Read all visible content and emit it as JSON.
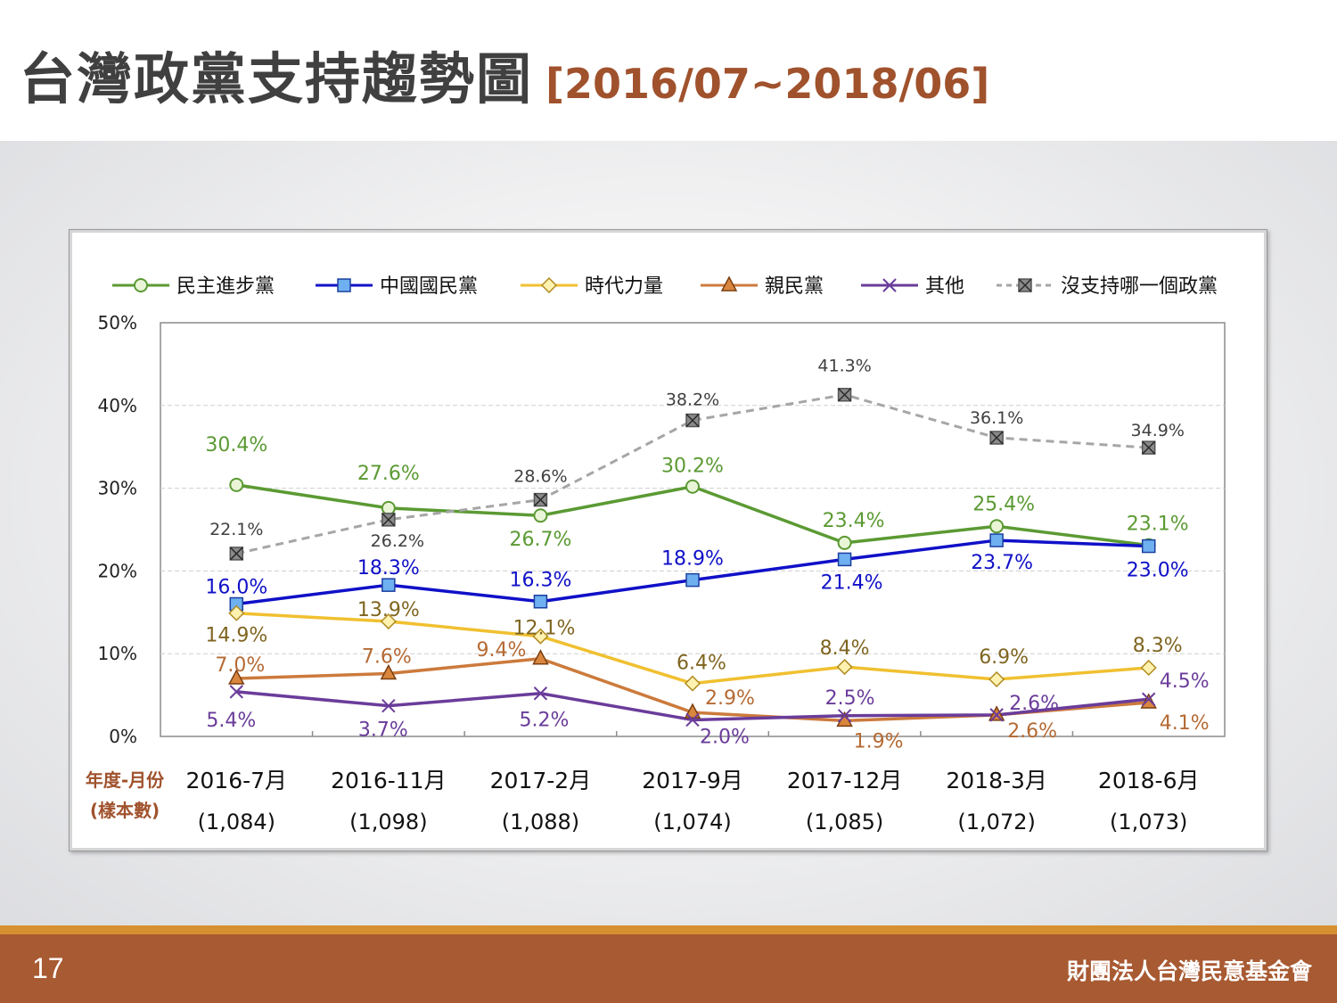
{
  "slide": {
    "title": "台灣政黨支持趨勢圖",
    "title_range": "[2016/07~2018/06]",
    "page_number": "17",
    "organization": "財團法人台灣民意基金會"
  },
  "colors": {
    "dpp": "#5b9a33",
    "kmt": "#1010c8",
    "npp": "#f0c030",
    "pfp": "#cc7a3c",
    "other": "#6a3c9a",
    "none": "#a6a6a6",
    "accent": "#a0522d"
  },
  "chart_data": {
    "type": "line",
    "title": "",
    "xlabel": "年度-月份\n(樣本數)",
    "xlabel_lines": [
      "年度-月份",
      "(樣本數)"
    ],
    "ylabel": "",
    "ylim": [
      0,
      50
    ],
    "yticks": [
      "0%",
      "10%",
      "20%",
      "30%",
      "40%",
      "50%"
    ],
    "grid": true,
    "legend_position": "top",
    "categories": [
      "2016-7月",
      "2016-11月",
      "2017-2月",
      "2017-9月",
      "2017-12月",
      "2018-3月",
      "2018-6月"
    ],
    "sample_sizes": [
      "(1,084)",
      "(1,098)",
      "(1,088)",
      "(1,074)",
      "(1,085)",
      "(1,072)",
      "(1,073)"
    ],
    "series": [
      {
        "name": "民主進步黨",
        "key": "dpp",
        "marker": "circle",
        "dashed": false,
        "values": [
          30.4,
          27.6,
          26.7,
          30.2,
          23.4,
          25.4,
          23.1
        ],
        "labels": [
          "30.4%",
          "27.6%",
          "26.7%",
          "30.2%",
          "23.4%",
          "25.4%",
          "23.1%"
        ]
      },
      {
        "name": "中國國民黨",
        "key": "kmt",
        "marker": "square",
        "dashed": false,
        "values": [
          16.0,
          18.3,
          16.3,
          18.9,
          21.4,
          23.7,
          23.0
        ],
        "labels": [
          "16.0%",
          "18.3%",
          "16.3%",
          "18.9%",
          "21.4%",
          "23.7%",
          "23.0%"
        ]
      },
      {
        "name": "時代力量",
        "key": "npp",
        "marker": "diamond",
        "dashed": false,
        "values": [
          14.9,
          13.9,
          12.1,
          6.4,
          8.4,
          6.9,
          8.3
        ],
        "labels": [
          "14.9%",
          "13.9%",
          "12.1%",
          "6.4%",
          "8.4%",
          "6.9%",
          "8.3%"
        ]
      },
      {
        "name": "親民黨",
        "key": "pfp",
        "marker": "triangle",
        "dashed": false,
        "values": [
          7.0,
          7.6,
          9.4,
          2.9,
          1.9,
          2.6,
          4.1
        ],
        "labels": [
          "7.0%",
          "7.6%",
          "9.4%",
          "2.9%",
          "1.9%",
          "2.6%",
          "4.1%"
        ]
      },
      {
        "name": "其他",
        "key": "other",
        "marker": "x",
        "dashed": false,
        "values": [
          5.4,
          3.7,
          5.2,
          2.0,
          2.5,
          2.6,
          4.5
        ],
        "labels": [
          "5.4%",
          "3.7%",
          "5.2%",
          "2.0%",
          "2.5%",
          "2.6%",
          "4.5%"
        ]
      },
      {
        "name": "沒支持哪一個政黨",
        "key": "none",
        "marker": "xsquare",
        "dashed": true,
        "values": [
          22.1,
          26.2,
          28.6,
          38.2,
          41.3,
          36.1,
          34.9
        ],
        "labels": [
          "22.1%",
          "26.2%",
          "28.6%",
          "38.2%",
          "41.3%",
          "36.1%",
          "34.9%"
        ]
      }
    ]
  }
}
